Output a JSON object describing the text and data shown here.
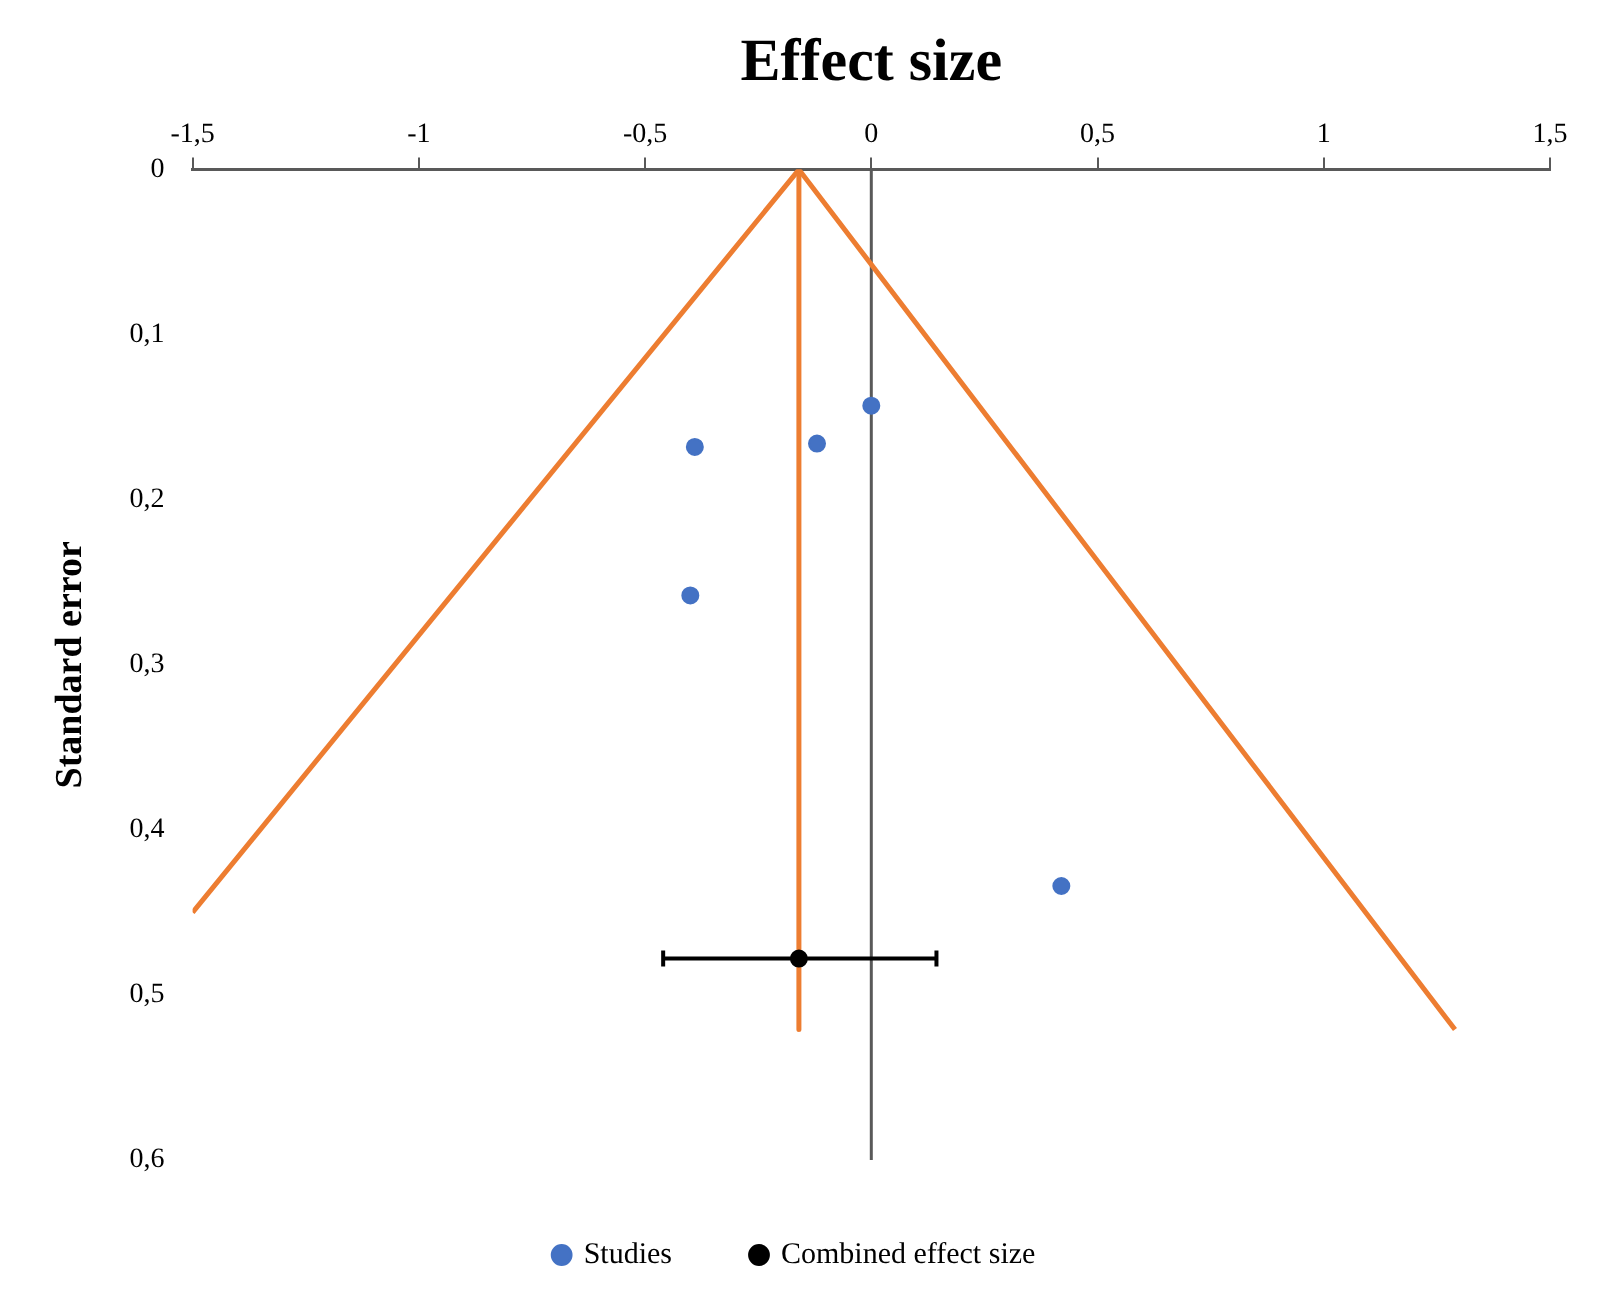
{
  "chart_data": {
    "type": "scatter",
    "xlabel": "Effect size",
    "ylabel": "Standard error",
    "xlim": [
      -1.5,
      1.5
    ],
    "xticks": [
      {
        "value": -1.5,
        "label": "-1,5"
      },
      {
        "value": -1,
        "label": "-1"
      },
      {
        "value": -0.5,
        "label": "-0,5"
      },
      0,
      {
        "value": 0.5,
        "label": "0,5"
      },
      1,
      {
        "value": 1.5,
        "label": "1,5"
      }
    ],
    "ylim": [
      0.6,
      0
    ],
    "yticks": [
      0,
      {
        "value": 0.1,
        "label": "0,1"
      },
      {
        "value": 0.2,
        "label": "0,2"
      },
      {
        "value": 0.3,
        "label": "0,3"
      },
      {
        "value": 0.4,
        "label": "0,4"
      },
      {
        "value": 0.5,
        "label": "0,5"
      },
      {
        "value": 0.6,
        "label": "0,6"
      }
    ],
    "series": [
      {
        "type": "line",
        "color": "#ed7d31",
        "marker": "none",
        "x": [
          -1.5,
          -0.16,
          1.29
        ],
        "values": [
          0.45,
          0,
          0.521
        ]
      },
      {
        "type": "line",
        "color": "#ed7d31",
        "marker": "none",
        "x": [
          -0.16,
          -0.16
        ],
        "values": [
          0,
          0.521
        ]
      },
      {
        "type": "scatter",
        "name": "Studies",
        "color": "#4472c4",
        "marker": "circle",
        "x": [
          0,
          -0.12,
          -0.39,
          -0.4,
          0.42
        ],
        "values": [
          0.143,
          0.166,
          0.168,
          0.258,
          0.434
        ]
      },
      {
        "type": "scatter",
        "name": "Combined effect size",
        "color": "#000000",
        "marker": "circle",
        "x": [
          -0.16
        ],
        "values": [
          0.478
        ],
        "xerrors": [
          [
            -0.46,
            0.144
          ]
        ]
      }
    ],
    "ref_lines": [
      {
        "axis": "x",
        "value": 0,
        "color": "#595959"
      }
    ],
    "grid": false,
    "legend": "bottom",
    "line_style": "solid"
  }
}
